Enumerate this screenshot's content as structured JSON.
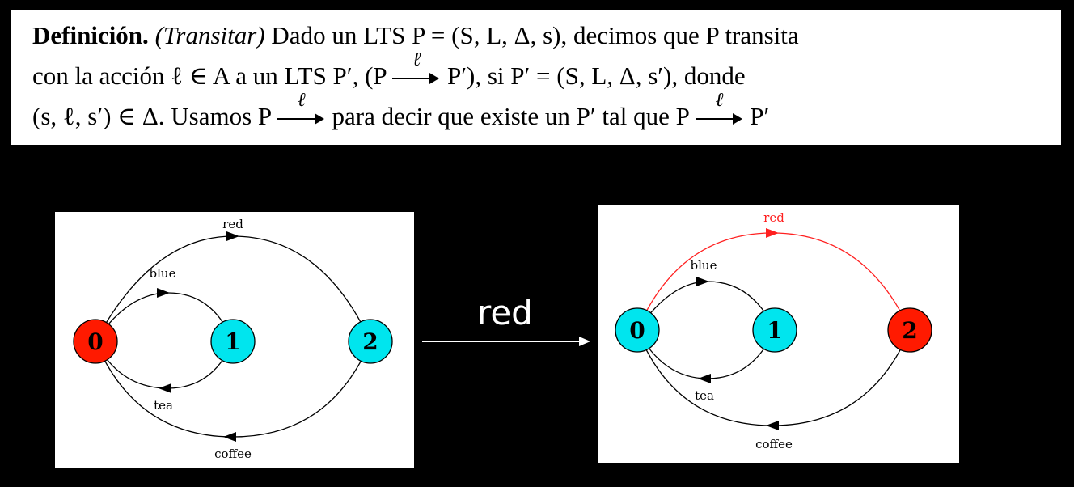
{
  "definition": {
    "title": "Definición.",
    "term": "(Transitar)",
    "line1_rest": "Dado un LTS P = (S, L, Δ, s), decimos que P transita",
    "line2_a": "con la acción ℓ ∈ A a un LTS P′, (P",
    "line2_b": "P′), si P′ = (S, L, Δ, s′), donde",
    "line3_a": "(s, ℓ, s′) ∈ Δ. Usamos P",
    "line3_b": "para decir que existe un P′ tal que P",
    "line3_c": "P′",
    "arrow_label": "ℓ"
  },
  "transition_label": "red",
  "left_graph": {
    "states": [
      "0",
      "1",
      "2"
    ],
    "active_state": "0",
    "edge_labels": {
      "red": "red",
      "blue": "blue",
      "tea": "tea",
      "coffee": "coffee"
    }
  },
  "right_graph": {
    "states": [
      "0",
      "1",
      "2"
    ],
    "active_state": "2",
    "highlighted_edge": "red",
    "edge_labels": {
      "red": "red",
      "blue": "blue",
      "tea": "tea",
      "coffee": "coffee"
    }
  },
  "colors": {
    "active": "#ff1a00",
    "inactive": "#00e5ee",
    "highlight": "#ff2020"
  }
}
